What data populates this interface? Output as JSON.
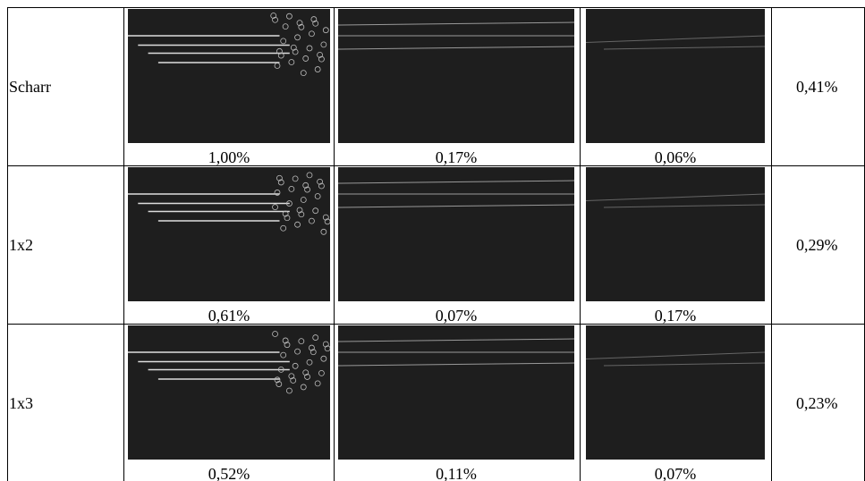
{
  "table": {
    "rows": [
      {
        "label": "Scharr",
        "captions": [
          "1,00%",
          "0,17%",
          "0,06%"
        ],
        "average": "0,41%"
      },
      {
        "label": "1x2",
        "captions": [
          "0,61%",
          "0,07%",
          "0,17%"
        ],
        "average": "0,29%"
      },
      {
        "label": "1x3",
        "captions": [
          "0,52%",
          "0,11%",
          "0,07%"
        ],
        "average": "0,23%"
      }
    ]
  }
}
